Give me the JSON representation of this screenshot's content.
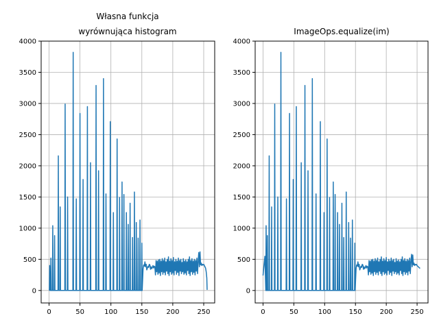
{
  "figure": {
    "background": "#ffffff"
  },
  "chart_data": [
    {
      "type": "line",
      "title_lines": [
        "Własna funkcja",
        "wyrównująca histogram"
      ],
      "xlabel": "",
      "ylabel": "",
      "xlim": [
        -12.75,
        267.75
      ],
      "ylim": [
        -200,
        4000
      ],
      "xticks": [
        0,
        50,
        100,
        150,
        200,
        250
      ],
      "yticks": [
        0,
        500,
        1000,
        1500,
        2000,
        2500,
        3000,
        3500,
        4000
      ],
      "grid": true,
      "line_color": "#1f77b4",
      "series": [
        {
          "spikes": [
            {
              "x": 1,
              "v": 400
            },
            {
              "x": 3,
              "v": 520
            },
            {
              "x": 6,
              "v": 1040
            },
            {
              "x": 9,
              "v": 880
            },
            {
              "x": 15,
              "v": 2160
            },
            {
              "x": 18,
              "v": 1340
            },
            {
              "x": 26,
              "v": 2990
            },
            {
              "x": 30,
              "v": 1500
            },
            {
              "x": 39,
              "v": 3820
            },
            {
              "x": 44,
              "v": 1470
            },
            {
              "x": 50,
              "v": 2840
            },
            {
              "x": 55,
              "v": 1780
            },
            {
              "x": 62,
              "v": 2950
            },
            {
              "x": 67,
              "v": 2050
            },
            {
              "x": 76,
              "v": 3290
            },
            {
              "x": 80,
              "v": 1920
            },
            {
              "x": 88,
              "v": 3400
            },
            {
              "x": 92,
              "v": 1550
            },
            {
              "x": 99,
              "v": 2710
            },
            {
              "x": 104,
              "v": 1250
            },
            {
              "x": 110,
              "v": 2430
            },
            {
              "x": 114,
              "v": 1490
            },
            {
              "x": 118,
              "v": 1740
            },
            {
              "x": 121,
              "v": 1540
            },
            {
              "x": 125,
              "v": 1250
            },
            {
              "x": 128,
              "v": 1060
            },
            {
              "x": 131,
              "v": 1400
            },
            {
              "x": 135,
              "v": 850
            },
            {
              "x": 138,
              "v": 1580
            },
            {
              "x": 141,
              "v": 1090
            },
            {
              "x": 144,
              "v": 840
            },
            {
              "x": 147,
              "v": 1130
            },
            {
              "x": 150,
              "v": 760
            }
          ],
          "tail_x_start": 152,
          "tail_x_end": 255,
          "tail_values": [
            350,
            410,
            390,
            460,
            380,
            420,
            330,
            360,
            390,
            370,
            420,
            410,
            340,
            380,
            350,
            370,
            400,
            360,
            390,
            380,
            250,
            480,
            300,
            470,
            260,
            490,
            280,
            500,
            240,
            470,
            300,
            510,
            260,
            480,
            290,
            520,
            250,
            460,
            310,
            500,
            270,
            540,
            240,
            470,
            300,
            510,
            260,
            480,
            280,
            530,
            250,
            460,
            320,
            500,
            260,
            470,
            290,
            520,
            240,
            480,
            310,
            500,
            270,
            450,
            300,
            510,
            260,
            470,
            280,
            490,
            250,
            460,
            320,
            500,
            270,
            540,
            240,
            480,
            300,
            510,
            260,
            470,
            290,
            500,
            250,
            480,
            310,
            520,
            270,
            460,
            610,
            380,
            620,
            410,
            440,
            400,
            420,
            410,
            420,
            400,
            380,
            360,
            300,
            200
          ],
          "end_value": 10
        }
      ]
    },
    {
      "type": "line",
      "title_lines": [
        "ImageOps.equalize(im)"
      ],
      "xlabel": "",
      "ylabel": "",
      "xlim": [
        -12.75,
        267.75
      ],
      "ylim": [
        -200,
        4000
      ],
      "xticks": [
        0,
        50,
        100,
        150,
        200,
        250
      ],
      "yticks": [
        0,
        500,
        1000,
        1500,
        2000,
        2500,
        3000,
        3500,
        4000
      ],
      "grid": true,
      "line_color": "#1f77b4",
      "series": [
        {
          "start_points": [
            {
              "x": 0,
              "v": 240
            },
            {
              "x": 3,
              "v": 550
            }
          ],
          "spikes": [
            {
              "x": 5,
              "v": 1040
            },
            {
              "x": 7,
              "v": 880
            },
            {
              "x": 10,
              "v": 2160
            },
            {
              "x": 14,
              "v": 1340
            },
            {
              "x": 19,
              "v": 2990
            },
            {
              "x": 24,
              "v": 1500
            },
            {
              "x": 29,
              "v": 3820
            },
            {
              "x": 38,
              "v": 1470
            },
            {
              "x": 43,
              "v": 2840
            },
            {
              "x": 49,
              "v": 1780
            },
            {
              "x": 54,
              "v": 2950
            },
            {
              "x": 62,
              "v": 2050
            },
            {
              "x": 68,
              "v": 3290
            },
            {
              "x": 73,
              "v": 1920
            },
            {
              "x": 80,
              "v": 3400
            },
            {
              "x": 86,
              "v": 1550
            },
            {
              "x": 93,
              "v": 2710
            },
            {
              "x": 99,
              "v": 1250
            },
            {
              "x": 104,
              "v": 2430
            },
            {
              "x": 108,
              "v": 1490
            },
            {
              "x": 114,
              "v": 1740
            },
            {
              "x": 117,
              "v": 1540
            },
            {
              "x": 121,
              "v": 1250
            },
            {
              "x": 124,
              "v": 1060
            },
            {
              "x": 128,
              "v": 1400
            },
            {
              "x": 131,
              "v": 850
            },
            {
              "x": 135,
              "v": 1580
            },
            {
              "x": 139,
              "v": 1090
            },
            {
              "x": 142,
              "v": 840
            },
            {
              "x": 145,
              "v": 1130
            },
            {
              "x": 149,
              "v": 760
            }
          ],
          "tail_x_start": 151,
          "tail_x_end": 255,
          "tail_values": [
            350,
            410,
            390,
            460,
            380,
            420,
            330,
            360,
            390,
            370,
            420,
            410,
            340,
            380,
            350,
            370,
            400,
            360,
            390,
            380,
            250,
            480,
            300,
            470,
            260,
            490,
            280,
            500,
            240,
            470,
            300,
            510,
            260,
            480,
            290,
            520,
            250,
            460,
            310,
            500,
            270,
            540,
            240,
            470,
            300,
            510,
            260,
            480,
            280,
            530,
            250,
            460,
            320,
            500,
            260,
            470,
            290,
            520,
            240,
            480,
            310,
            500,
            270,
            450,
            300,
            510,
            260,
            470,
            280,
            490,
            250,
            460,
            320,
            500,
            270,
            540,
            240,
            480,
            300,
            510,
            260,
            470,
            290,
            500,
            250,
            480,
            310,
            520,
            270,
            460,
            580,
            380,
            570,
            410,
            440,
            400,
            420,
            410,
            420,
            400,
            390,
            380,
            370,
            360,
            360
          ]
        }
      ]
    }
  ]
}
